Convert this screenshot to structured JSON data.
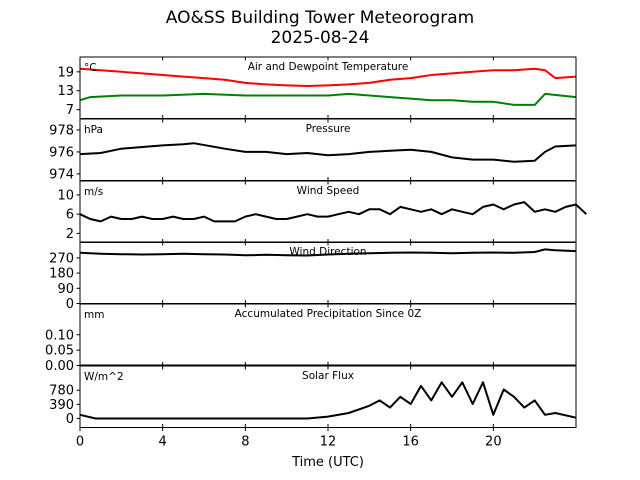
{
  "title": "AO&SS Building Tower Meteorogram",
  "subtitle": "2025-08-24",
  "chart_data": {
    "type": "line",
    "xlabel": "Time (UTC)",
    "xlim": [
      0,
      24
    ],
    "xticks": [
      0,
      4,
      8,
      12,
      16,
      20
    ],
    "grid": false,
    "panels": [
      {
        "title": "Air and Dewpoint Temperature",
        "unit": "°C",
        "ylim": [
          4.2,
          23.7
        ],
        "yticks": [
          7,
          13,
          19
        ],
        "series": [
          {
            "color": "#ff0000",
            "x": [
              0,
              1,
              2,
              3,
              4,
              5,
              6,
              7,
              8,
              9,
              10,
              11,
              12,
              13,
              14,
              15,
              16,
              17,
              18,
              19,
              20,
              21,
              22,
              22.5,
              23,
              24
            ],
            "y": [
              20,
              19.5,
              19,
              18.5,
              18,
              17.5,
              17,
              16.5,
              15.5,
              15,
              14.7,
              14.5,
              14.7,
              15,
              15.5,
              16.5,
              17,
              18,
              18.5,
              19,
              19.5,
              19.5,
              20,
              19.5,
              17,
              17.5
            ]
          },
          {
            "color": "#008000",
            "x": [
              0,
              0.5,
              2,
              4,
              6,
              8,
              10,
              12,
              13,
              14,
              15,
              16,
              17,
              18,
              19,
              20,
              21,
              22,
              22.5,
              24
            ],
            "y": [
              10,
              11,
              11.5,
              11.5,
              12,
              11.5,
              11.5,
              11.5,
              12,
              11.5,
              11,
              10.5,
              10,
              10,
              9.5,
              9.5,
              8.5,
              8.5,
              12,
              11
            ]
          }
        ]
      },
      {
        "title": "Pressure",
        "unit": "hPa",
        "ylim": [
          973.4,
          979
        ],
        "yticks": [
          974,
          976,
          978
        ],
        "series": [
          {
            "color": "#000000",
            "x": [
              0,
              1,
              2,
              4,
              5,
              5.5,
              7,
              8,
              9,
              10,
              11,
              12,
              13,
              14,
              15,
              16,
              17,
              18,
              19,
              20,
              21,
              22,
              22.5,
              23,
              24
            ],
            "y": [
              975.8,
              975.9,
              976.3,
              976.6,
              976.7,
              976.8,
              976.3,
              976.0,
              976.0,
              975.8,
              975.9,
              975.7,
              975.8,
              976.0,
              976.1,
              976.2,
              976.0,
              975.5,
              975.3,
              975.3,
              975.1,
              975.2,
              976.0,
              976.5,
              976.6
            ]
          }
        ]
      },
      {
        "title": "Wind Speed",
        "unit": "m/s",
        "ylim": [
          0.1,
          12.9
        ],
        "yticks": [
          2,
          6,
          10
        ],
        "series": [
          {
            "color": "#000000",
            "x_step": 0.5,
            "y": [
              6,
              5,
              4.5,
              5.5,
              5,
              5,
              5.5,
              5,
              5,
              5.5,
              5,
              5,
              5.5,
              4.5,
              4.5,
              4.5,
              5.5,
              6,
              5.5,
              5,
              5,
              5.5,
              6,
              5.5,
              5.5,
              6,
              6.5,
              6,
              7,
              7,
              6,
              7.5,
              7,
              6.5,
              7,
              6,
              7,
              6.5,
              6,
              7.5,
              8,
              7,
              8,
              8.5,
              6.5,
              7,
              6.5,
              7.5,
              8,
              6
            ]
          }
        ]
      },
      {
        "title": "Wind Direction",
        "unit": "",
        "ylim": [
          0,
          364
        ],
        "yticks": [
          0,
          90,
          180,
          270
        ],
        "series": [
          {
            "color": "#000000",
            "x": [
              0,
              1,
              2,
              3,
              4,
              5,
              6,
              7,
              8,
              9,
              10,
              11,
              12,
              13,
              14,
              15,
              16,
              17,
              18,
              19,
              20,
              21,
              22,
              22.5,
              23,
              24
            ],
            "y": [
              300,
              295,
              292,
              290,
              292,
              294,
              292,
              290,
              285,
              288,
              286,
              284,
              290,
              295,
              298,
              300,
              302,
              300,
              298,
              300,
              302,
              300,
              305,
              320,
              315,
              310
            ]
          }
        ]
      },
      {
        "title": "Accumulated Precipitation Since 0Z",
        "unit": "mm",
        "ylim": [
          0,
          0.2
        ],
        "yticks": [
          0.0,
          0.05,
          0.1
        ],
        "series": [
          {
            "color": "#000000",
            "x": [
              0,
              24
            ],
            "y": [
              0,
              0
            ]
          }
        ]
      },
      {
        "title": "Solar Flux",
        "unit": "W/m^2",
        "ylim": [
          -250,
          1450
        ],
        "yticks": [
          0,
          390,
          780
        ],
        "series": [
          {
            "color": "#000000",
            "x": [
              0,
              0.75,
              11,
              12,
              13,
              14,
              14.5,
              15,
              15.5,
              16,
              16.5,
              17,
              17.5,
              18,
              18.5,
              19,
              19.5,
              20,
              20.5,
              21,
              21.5,
              22,
              22.5,
              23,
              24
            ],
            "y": [
              100,
              0,
              0,
              50,
              150,
              350,
              500,
              300,
              600,
              400,
              900,
              500,
              1000,
              600,
              1000,
              400,
              1000,
              100,
              800,
              600,
              300,
              500,
              100,
              150,
              20
            ]
          }
        ]
      }
    ]
  }
}
